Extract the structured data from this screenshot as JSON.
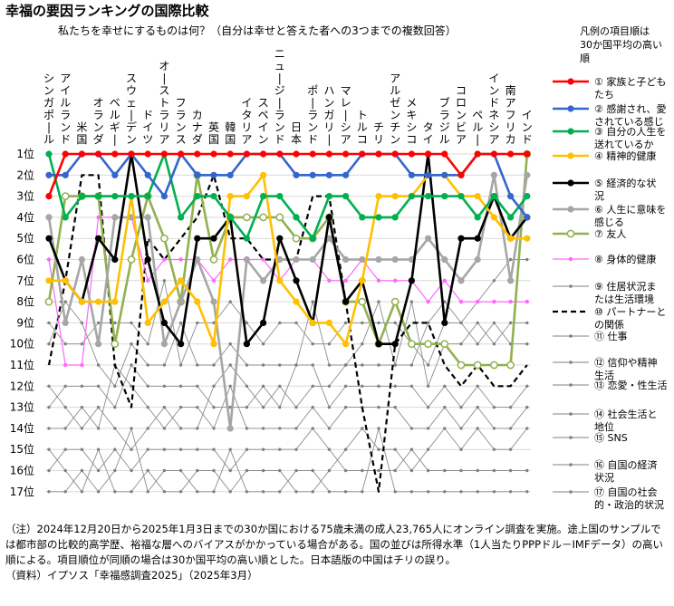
{
  "title": "幸福の要因ランキングの国際比較",
  "subtitle": "私たちを幸せにするものは何？（自分は幸せと答えた者への3つまでの複数回答）",
  "legend_title": "凡例の項目順は30か国平均の高い順",
  "note": "（注）2024年12月20日から2025年1月3日までの30か国における75歳未満の成人23,765人にオンライン調査を実施。途上国のサンプルでは都市部の比較的高学歴、裕福な層へのバイアスがかかっている場合がある。国の並びは所得水準（1人当たりPPPドル－IMFデータ）の高い順による。項目順位が同順の場合は30か国平均の高い順とした。日本語版の中国はチリの誤り。",
  "source": "（資料）イプソス「幸福感調査2025」（2025年3月）",
  "chart_data": {
    "type": "line",
    "categories": [
      "シンガポール",
      "アイルランド",
      "米国",
      "オランダ",
      "ベルギー",
      "スウェーデン",
      "ドイツ",
      "オーストラリア",
      "フランス",
      "カナダ",
      "英国",
      "韓国",
      "イタリア",
      "スペイン",
      "ニュージーランド",
      "日本",
      "ポーランド",
      "ハンガリー",
      "マレーシア",
      "トルコ",
      "チリ",
      "アルゼンチン",
      "メキシコ",
      "タイ",
      "ブラジル",
      "コロンビア",
      "ペルー",
      "インドネシア",
      "南アフリカ",
      "インド"
    ],
    "y_ticks": [
      "1位",
      "2位",
      "3位",
      "4位",
      "5位",
      "6位",
      "7位",
      "8位",
      "9位",
      "10位",
      "11位",
      "12位",
      "13位",
      "14位",
      "15位",
      "16位",
      "17位"
    ],
    "ylim": [
      1,
      17
    ],
    "y_reversed": true,
    "highlighted_series": [
      {
        "name": "① 家族と子どもたち",
        "color": "#ff0000",
        "line": "solid",
        "marker": "circle",
        "values": [
          3,
          1,
          1,
          1,
          1,
          1,
          1,
          1,
          1,
          1,
          1,
          1,
          1,
          1,
          1,
          1,
          1,
          1,
          1,
          1,
          1,
          1,
          1,
          1,
          1,
          2,
          1,
          1,
          1,
          1
        ]
      },
      {
        "name": "② 感謝され、愛されている感じ",
        "color": "#3366cc",
        "line": "solid",
        "marker": "circle",
        "values": [
          2,
          2,
          1,
          1,
          2,
          1,
          2,
          3,
          1,
          2,
          2,
          2,
          1,
          1,
          1,
          2,
          2,
          2,
          2,
          1,
          1,
          1,
          2,
          2,
          2,
          2,
          1,
          1,
          3,
          4
        ]
      },
      {
        "name": "③ 自分の人生を送れているか",
        "color": "#00b050",
        "line": "solid",
        "marker": "circle",
        "values": [
          1,
          4,
          3,
          3,
          3,
          3,
          3,
          1,
          4,
          3,
          3,
          4,
          5,
          3,
          3,
          4,
          5,
          3,
          3,
          4,
          4,
          4,
          3,
          3,
          3,
          3,
          4,
          3,
          4,
          3
        ]
      },
      {
        "name": "④ 精神的健康",
        "color": "#ffc000",
        "line": "solid",
        "marker": "circle",
        "values": [
          7,
          7,
          8,
          8,
          8,
          3,
          9,
          8,
          7,
          8,
          10,
          3,
          3,
          2,
          7,
          8,
          9,
          9,
          10,
          7,
          3,
          3,
          3,
          2,
          2,
          3,
          3,
          4,
          5,
          5
        ]
      },
      {
        "name": "⑤ 経済的な状況",
        "color": "#000000",
        "line": "solid",
        "marker": "circle",
        "values": [
          5,
          7,
          8,
          5,
          6,
          1,
          6,
          9,
          10,
          5,
          5,
          4,
          10,
          9,
          5,
          7,
          9,
          4,
          8,
          7,
          10,
          10,
          7,
          1,
          9,
          5,
          5,
          3,
          5,
          4
        ]
      },
      {
        "name": "⑥ 人生に意味を感じる",
        "color": "#a6a6a6",
        "line": "solid",
        "marker": "circle",
        "values": [
          4,
          9,
          6,
          10,
          4,
          4,
          4,
          10,
          8,
          6,
          8,
          14,
          6,
          7,
          6,
          6,
          6,
          5,
          6,
          6,
          6,
          6,
          6,
          5,
          6,
          7,
          6,
          2,
          7,
          2
        ]
      },
      {
        "name": "⑦ 友人",
        "color": "#92b050",
        "line": "solid",
        "marker": "hollow",
        "values": [
          8,
          3,
          3,
          3,
          10,
          6,
          3,
          5,
          8,
          2,
          6,
          4,
          4,
          4,
          4,
          5,
          5,
          4,
          8,
          8,
          10,
          8,
          10,
          10,
          10,
          11,
          11,
          11,
          11,
          1
        ]
      },
      {
        "name": "⑧ 身体的健康",
        "color": "#ff66ff",
        "line": "solid",
        "marker": "circle",
        "values": [
          6,
          11,
          11,
          4,
          4,
          4,
          7,
          6,
          6,
          6,
          7,
          6,
          6,
          6,
          7,
          6,
          6,
          7,
          7,
          6,
          7,
          7,
          7,
          8,
          7,
          8,
          8,
          8,
          8,
          8
        ]
      },
      {
        "name": "⑩ パートナーとの関係",
        "color": "#000000",
        "line": "dashed",
        "marker": "none",
        "values": [
          11,
          7,
          2,
          2,
          11,
          13,
          5,
          6,
          5,
          4,
          2,
          5,
          5,
          6,
          6,
          6,
          3,
          3,
          8,
          13,
          17,
          10,
          9,
          9,
          11,
          12,
          11,
          12,
          12,
          11
        ]
      }
    ],
    "gray_series": [
      {
        "name": "⑨ 住居状況または生活環境",
        "values": [
          9,
          10,
          10,
          9,
          9,
          9,
          10,
          7,
          11,
          9,
          9,
          8,
          9,
          10,
          9,
          9,
          10,
          10,
          9,
          9,
          9,
          9,
          10,
          11,
          9,
          9,
          10,
          9,
          10,
          10
        ]
      },
      {
        "name": "⑪ 仕事",
        "values": [
          10,
          8,
          9,
          11,
          12,
          10,
          11,
          11,
          9,
          11,
          11,
          10,
          11,
          11,
          11,
          11,
          8,
          11,
          11,
          11,
          11,
          11,
          8,
          12,
          10,
          10,
          9,
          10,
          9,
          9
        ]
      },
      {
        "name": "⑫ 信仰や精神生活",
        "values": [
          12,
          13,
          14,
          13,
          14,
          15,
          14,
          13,
          14,
          14,
          12,
          11,
          12,
          13,
          12,
          13,
          12,
          12,
          11,
          10,
          8,
          11,
          11,
          9,
          8,
          9,
          8,
          7,
          6,
          6
        ]
      },
      {
        "name": "⑬ 恋愛・性生活",
        "values": [
          13,
          12,
          12,
          12,
          13,
          11,
          12,
          12,
          12,
          12,
          13,
          13,
          13,
          12,
          13,
          11,
          11,
          13,
          12,
          12,
          12,
          12,
          12,
          13,
          12,
          13,
          12,
          13,
          13,
          12
        ]
      },
      {
        "name": "⑭ 社会生活と地位",
        "values": [
          14,
          14,
          13,
          14,
          11,
          12,
          13,
          14,
          13,
          13,
          14,
          12,
          14,
          14,
          14,
          14,
          13,
          14,
          13,
          13,
          13,
          13,
          14,
          14,
          13,
          14,
          13,
          14,
          14,
          13
        ]
      },
      {
        "name": "⑮ SNS",
        "values": [
          15,
          16,
          17,
          15,
          17,
          17,
          16,
          17,
          17,
          16,
          16,
          17,
          16,
          16,
          16,
          17,
          17,
          16,
          15,
          14,
          15,
          15,
          16,
          15,
          14,
          15,
          14,
          15,
          15,
          14
        ]
      },
      {
        "name": "⑯ 自国の経済状況",
        "values": [
          16,
          15,
          15,
          16,
          15,
          16,
          15,
          15,
          15,
          15,
          15,
          16,
          15,
          15,
          15,
          15,
          14,
          15,
          16,
          16,
          16,
          16,
          15,
          16,
          16,
          16,
          16,
          16,
          16,
          16
        ]
      },
      {
        "name": "⑰ 自国の社会的・政治的状況",
        "values": [
          17,
          17,
          16,
          17,
          16,
          14,
          17,
          16,
          16,
          17,
          17,
          15,
          17,
          17,
          17,
          16,
          16,
          17,
          17,
          17,
          14,
          17,
          17,
          17,
          17,
          17,
          17,
          17,
          17,
          17
        ]
      }
    ]
  }
}
